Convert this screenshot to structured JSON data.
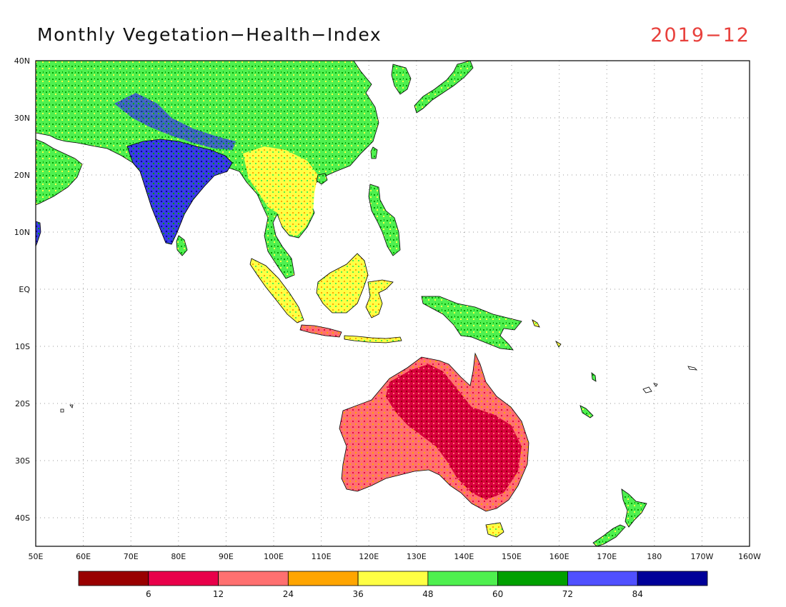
{
  "header": {
    "title": "Monthly Vegetation−Health−Index",
    "date": "2019−12"
  },
  "map": {
    "lon_labels": [
      "50E",
      "60E",
      "70E",
      "80E",
      "90E",
      "100E",
      "110E",
      "120E",
      "130E",
      "140E",
      "150E",
      "160E",
      "170E",
      "180",
      "170W",
      "160W"
    ],
    "lat_labels": [
      "40N",
      "30N",
      "20N",
      "10N",
      "EQ",
      "10S",
      "20S",
      "30S",
      "40S"
    ],
    "regions": [
      {
        "name": "India",
        "dominant_class": "84+"
      },
      {
        "name": "China",
        "dominant_class": "60-72"
      },
      {
        "name": "Indochina",
        "dominant_class": "24-48"
      },
      {
        "name": "Indonesia / Borneo",
        "dominant_class": "36-60"
      },
      {
        "name": "New Guinea",
        "dominant_class": "36-60"
      },
      {
        "name": "Australia",
        "dominant_class": "6-24"
      },
      {
        "name": "New Zealand",
        "dominant_class": "48-72"
      }
    ]
  },
  "colorbar": {
    "labels": [
      "6",
      "12",
      "24",
      "36",
      "48",
      "60",
      "72",
      "84"
    ],
    "colors": [
      "#990000",
      "#e8004a",
      "#ff7070",
      "#ffa500",
      "#ffff44",
      "#4ff04f",
      "#00a000",
      "#5050ff",
      "#000099"
    ]
  }
}
